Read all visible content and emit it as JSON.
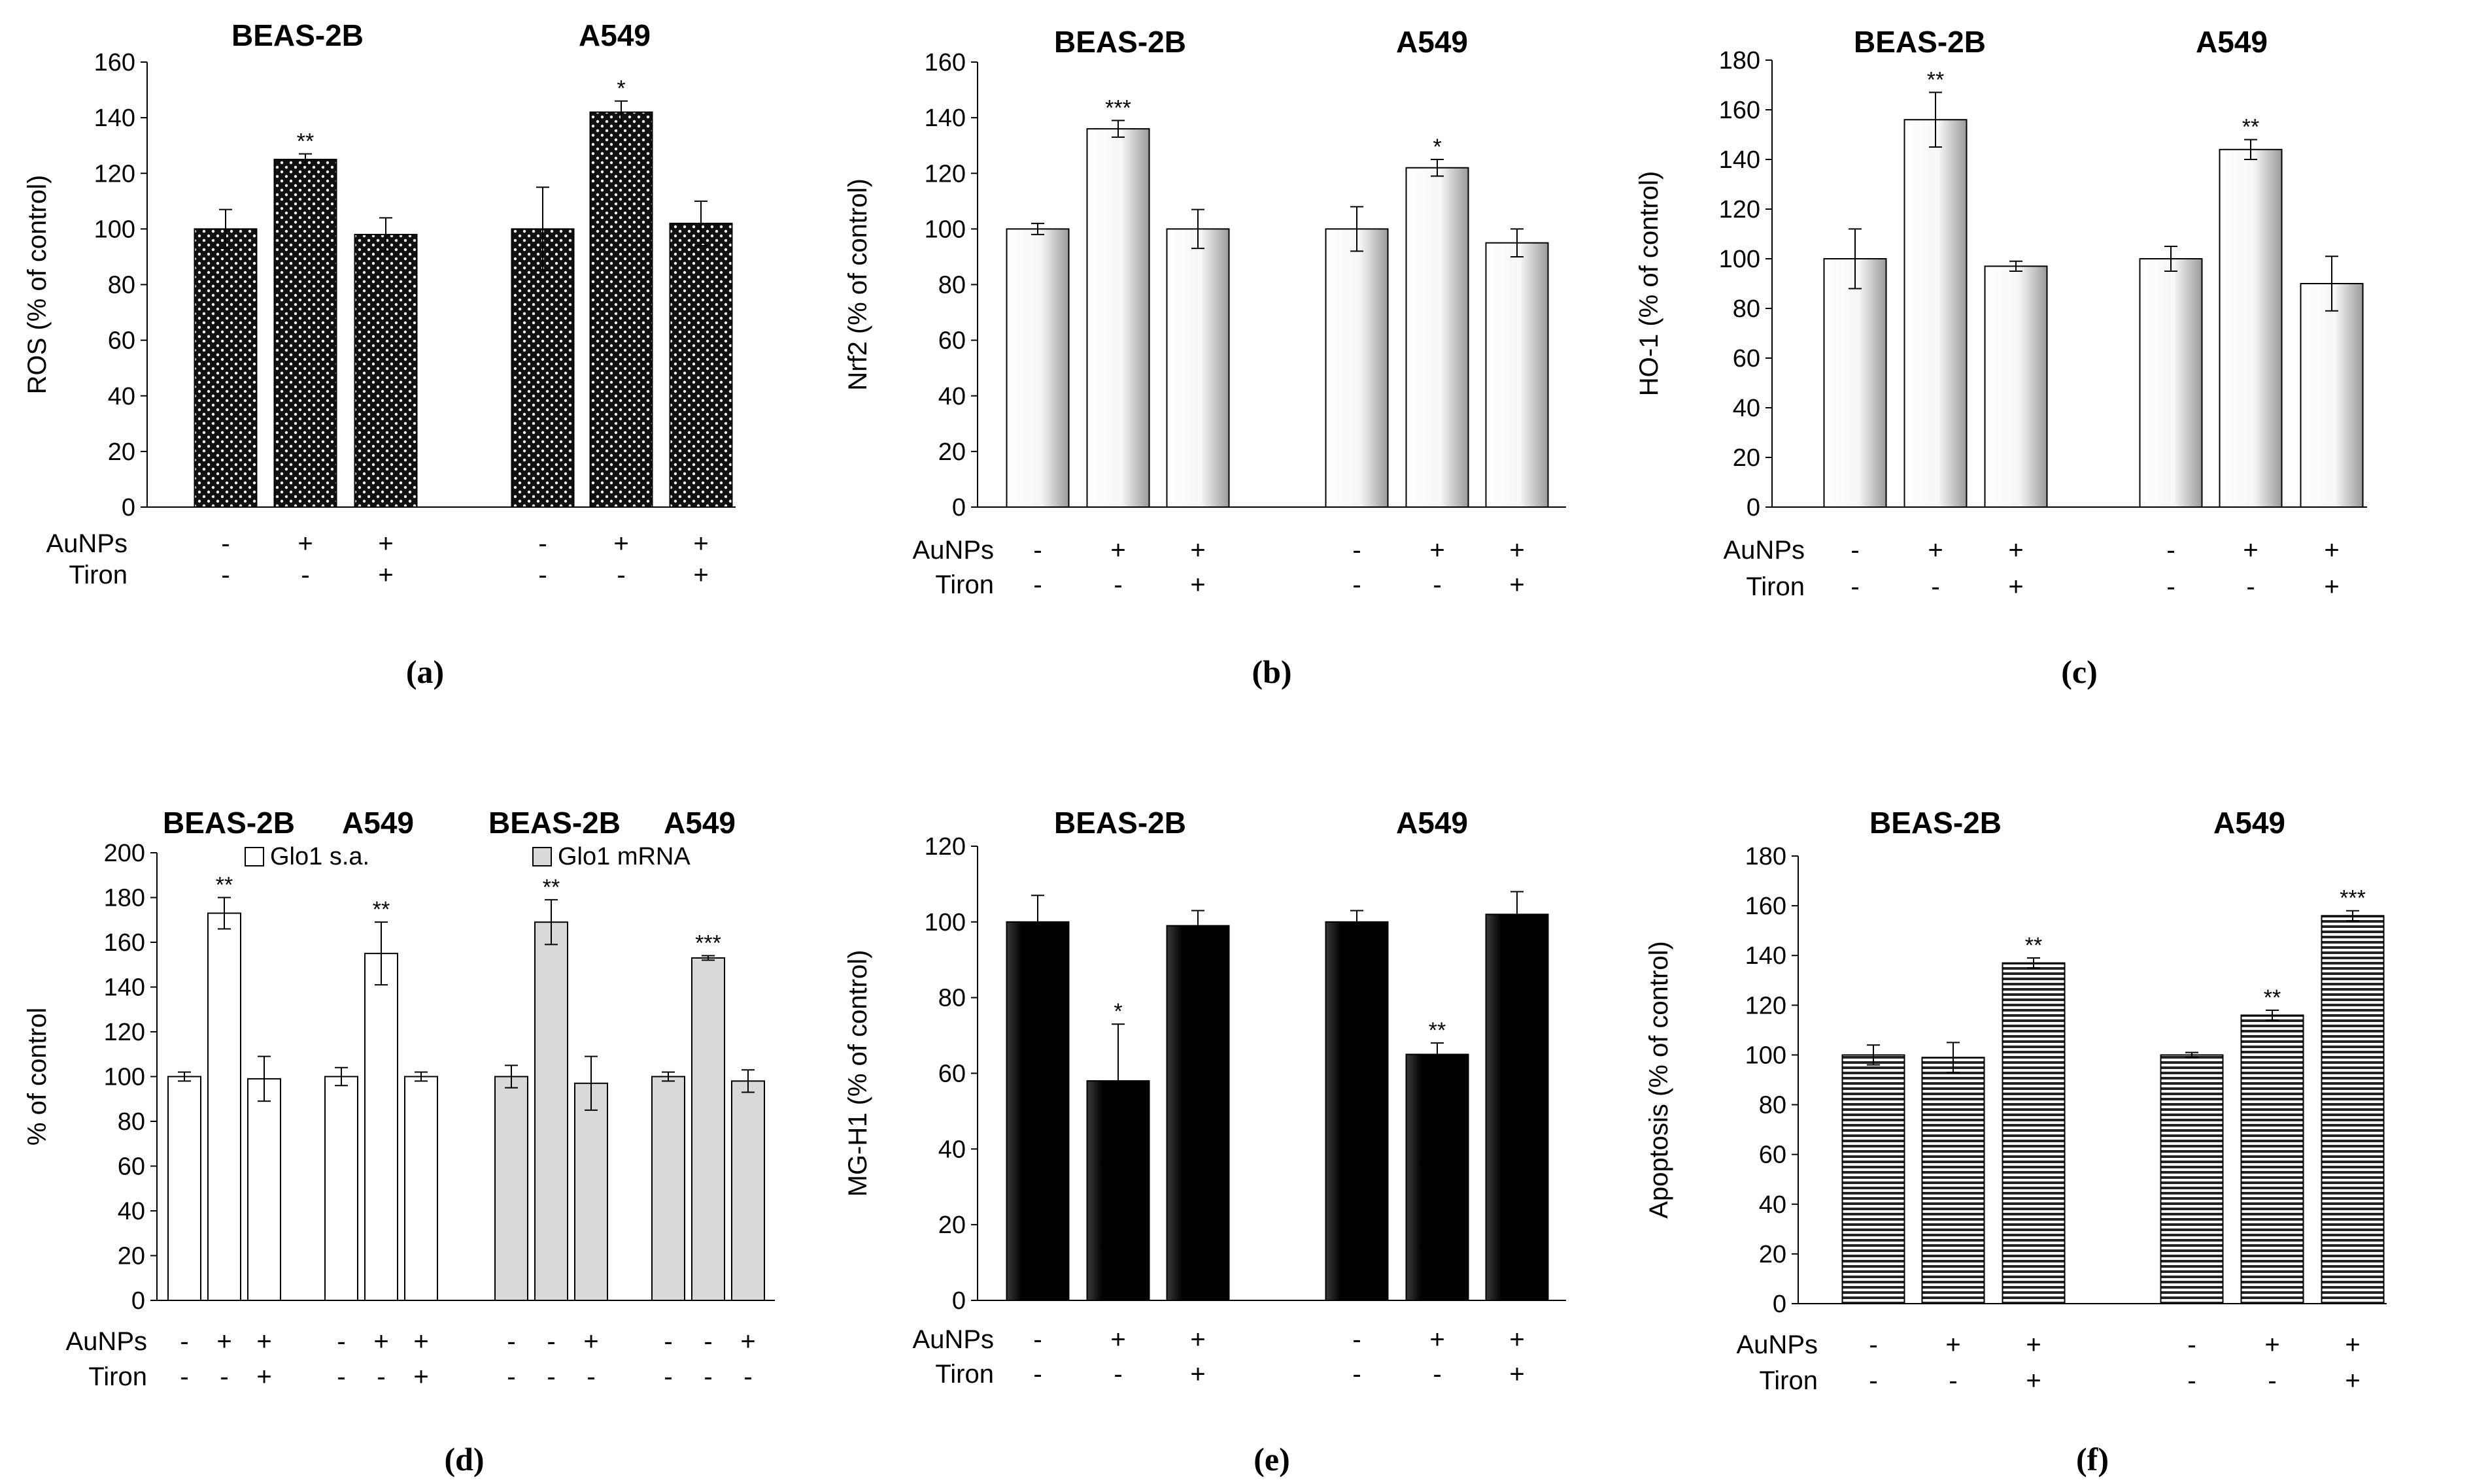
{
  "colors": {
    "axis": "#000000",
    "white": "#ffffff",
    "gray": "#d9d9d9",
    "black": "#000000"
  },
  "chart_data": [
    {
      "panel": "(a)",
      "type": "bar",
      "fill": "dots",
      "ylabel": "ROS (% of control)",
      "ylim": [
        0,
        160
      ],
      "ticks": [
        0,
        20,
        40,
        60,
        80,
        100,
        120,
        140,
        160
      ],
      "group_titles": [
        "BEAS-2B",
        "A549"
      ],
      "rows": [
        {
          "name": "AuNPs",
          "values": [
            "-",
            "+",
            "+",
            "-",
            "+",
            "+"
          ]
        },
        {
          "name": "Tiron",
          "values": [
            "-",
            "-",
            "+",
            "-",
            "-",
            "+"
          ]
        }
      ],
      "values": [
        100,
        125,
        98,
        100,
        142,
        102
      ],
      "errors": [
        7,
        2,
        6,
        15,
        4,
        8
      ],
      "sig": [
        "",
        "**",
        "",
        "",
        "*",
        ""
      ]
    },
    {
      "panel": "(b)",
      "type": "bar",
      "fill": "white-grad",
      "ylabel": "Nrf2 (% of control)",
      "ylim": [
        0,
        160
      ],
      "ticks": [
        0,
        20,
        40,
        60,
        80,
        100,
        120,
        140,
        160
      ],
      "group_titles": [
        "BEAS-2B",
        "A549"
      ],
      "rows": [
        {
          "name": "AuNPs",
          "values": [
            "-",
            "+",
            "+",
            "-",
            "+",
            "+"
          ]
        },
        {
          "name": "Tiron",
          "values": [
            "-",
            "-",
            "+",
            "-",
            "-",
            "+"
          ]
        }
      ],
      "values": [
        100,
        136,
        100,
        100,
        122,
        95
      ],
      "errors": [
        2,
        3,
        7,
        8,
        3,
        5
      ],
      "sig": [
        "",
        "***",
        "",
        "",
        "*",
        ""
      ]
    },
    {
      "panel": "(c)",
      "type": "bar",
      "fill": "white-grad",
      "ylabel": "HO-1 (% of control)",
      "ylim": [
        0,
        180
      ],
      "ticks": [
        0,
        20,
        40,
        60,
        80,
        100,
        120,
        140,
        160,
        180
      ],
      "group_titles": [
        "BEAS-2B",
        "A549"
      ],
      "rows": [
        {
          "name": "AuNPs",
          "values": [
            "-",
            "+",
            "+",
            "-",
            "+",
            "+"
          ]
        },
        {
          "name": "Tiron",
          "values": [
            "-",
            "-",
            "+",
            "-",
            "-",
            "+"
          ]
        }
      ],
      "values": [
        100,
        156,
        97,
        100,
        144,
        90
      ],
      "errors": [
        12,
        11,
        2,
        5,
        4,
        11
      ],
      "sig": [
        "",
        "**",
        "",
        "",
        "**",
        ""
      ]
    },
    {
      "panel": "(d)",
      "type": "bar",
      "fill": "series",
      "ylabel": "% of control",
      "ylim": [
        0,
        200
      ],
      "ticks": [
        0,
        20,
        40,
        60,
        80,
        100,
        120,
        140,
        160,
        180,
        200
      ],
      "group_titles": [
        "BEAS-2B",
        "A549",
        "BEAS-2B",
        "A549"
      ],
      "legend": [
        "Glo1 s.a.",
        "Glo1 mRNA"
      ],
      "rows": [
        {
          "name": "AuNPs",
          "values": [
            "-",
            "+",
            "+",
            "-",
            "+",
            "+",
            "-",
            "-",
            "+",
            "-",
            "-",
            "+"
          ]
        },
        {
          "name": "Tiron",
          "values": [
            "-",
            "-",
            "+",
            "-",
            "-",
            "+",
            "-",
            "-",
            "-",
            "-",
            "-",
            "-"
          ]
        }
      ],
      "series": [
        {
          "name": "Glo1 s.a.",
          "values": [
            100,
            173,
            99,
            100,
            155,
            100
          ],
          "errors": [
            2,
            7,
            10,
            4,
            14,
            2
          ],
          "sig": [
            "",
            "**",
            "",
            "",
            "**",
            ""
          ]
        },
        {
          "name": "Glo1 mRNA",
          "values": [
            100,
            169,
            97,
            100,
            153,
            98
          ],
          "errors": [
            5,
            10,
            12,
            2,
            1,
            5
          ],
          "sig": [
            "",
            "**",
            "",
            "",
            "***",
            ""
          ]
        }
      ]
    },
    {
      "panel": "(e)",
      "type": "bar",
      "fill": "black",
      "ylabel": "MG-H1  (% of control)",
      "ylim": [
        0,
        120
      ],
      "ticks": [
        0,
        20,
        40,
        60,
        80,
        100,
        120
      ],
      "group_titles": [
        "BEAS-2B",
        "A549"
      ],
      "rows": [
        {
          "name": "AuNPs",
          "values": [
            "-",
            "+",
            "+",
            "-",
            "+",
            "+"
          ]
        },
        {
          "name": "Tiron",
          "values": [
            "-",
            "-",
            "+",
            "-",
            "-",
            "+"
          ]
        }
      ],
      "values": [
        100,
        58,
        99,
        100,
        65,
        102
      ],
      "errors": [
        7,
        15,
        4,
        3,
        3,
        6
      ],
      "sig": [
        "",
        "*",
        "",
        "",
        "**",
        ""
      ]
    },
    {
      "panel": "(f)",
      "type": "bar",
      "fill": "hlines",
      "ylabel": "Apoptosis (% of control)",
      "ylim": [
        0,
        180
      ],
      "ticks": [
        0,
        20,
        40,
        60,
        80,
        100,
        120,
        140,
        160,
        180
      ],
      "group_titles": [
        "BEAS-2B",
        "A549"
      ],
      "rows": [
        {
          "name": "AuNPs",
          "values": [
            "-",
            "+",
            "+",
            "-",
            "+",
            "+"
          ]
        },
        {
          "name": "Tiron",
          "values": [
            "-",
            "-",
            "+",
            "-",
            "-",
            "+"
          ]
        }
      ],
      "values": [
        100,
        99,
        137,
        100,
        116,
        156
      ],
      "errors": [
        4,
        6,
        2,
        1,
        2,
        2
      ],
      "sig": [
        "",
        "",
        "**",
        "",
        "**",
        "***"
      ]
    }
  ]
}
